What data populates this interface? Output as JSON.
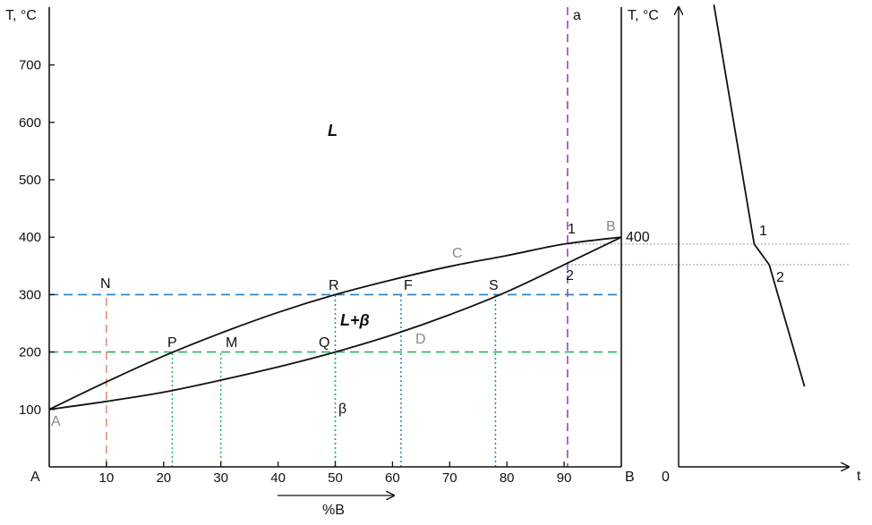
{
  "colors": {
    "curve": "#111111",
    "blue_dash": "#2a7fc1",
    "green_dash": "#23b565",
    "salmon_dash": "#e4907f",
    "purple_dash": "#8a4fb0",
    "gray_dot": "#b0b0b0",
    "gray_label": "#8a8a8a"
  },
  "phase_diagram": {
    "y_axis_title": "T, °C",
    "y_ticks": [
      "700",
      "600",
      "500",
      "400",
      "300",
      "200",
      "100"
    ],
    "x_ticks": [
      "10",
      "20",
      "30",
      "40",
      "50",
      "60",
      "70",
      "80",
      "90"
    ],
    "x_axis_label": "%B",
    "corner_left": "A",
    "corner_right": "B",
    "region_liquid": "L",
    "region_two_phase": "L+β",
    "region_solid": "β",
    "section_label": "a",
    "label_400": "400",
    "points": {
      "A": "A",
      "B": "B",
      "C": "C",
      "D": "D",
      "N": "N",
      "R": "R",
      "F": "F",
      "S": "S",
      "P": "P",
      "M": "M",
      "Q": "Q",
      "one": "1",
      "two": "2"
    },
    "series": [
      {
        "role": "liquidus",
        "x": [
          0,
          10,
          20,
          30,
          40,
          50,
          60,
          70,
          80,
          90,
          100
        ],
        "y": [
          100,
          148,
          193,
          233,
          269,
          300,
          326,
          349,
          368,
          388,
          400
        ]
      },
      {
        "role": "solidus",
        "x": [
          0,
          10,
          20,
          30,
          40,
          50,
          60,
          70,
          80,
          90,
          100
        ],
        "y": [
          100,
          114,
          130,
          151,
          174,
          200,
          230,
          265,
          305,
          352,
          400
        ]
      }
    ]
  },
  "cooling_curve": {
    "y_axis_title": "T, °C",
    "x_axis_label": "t",
    "origin_label": "0",
    "break_1": "1",
    "break_2": "2",
    "y_range": [
      100,
      800
    ],
    "series": [
      {
        "x": [
          0.28,
          0.6,
          0.72,
          1.0
        ],
        "y": [
          805,
          388,
          352,
          140
        ]
      }
    ]
  }
}
